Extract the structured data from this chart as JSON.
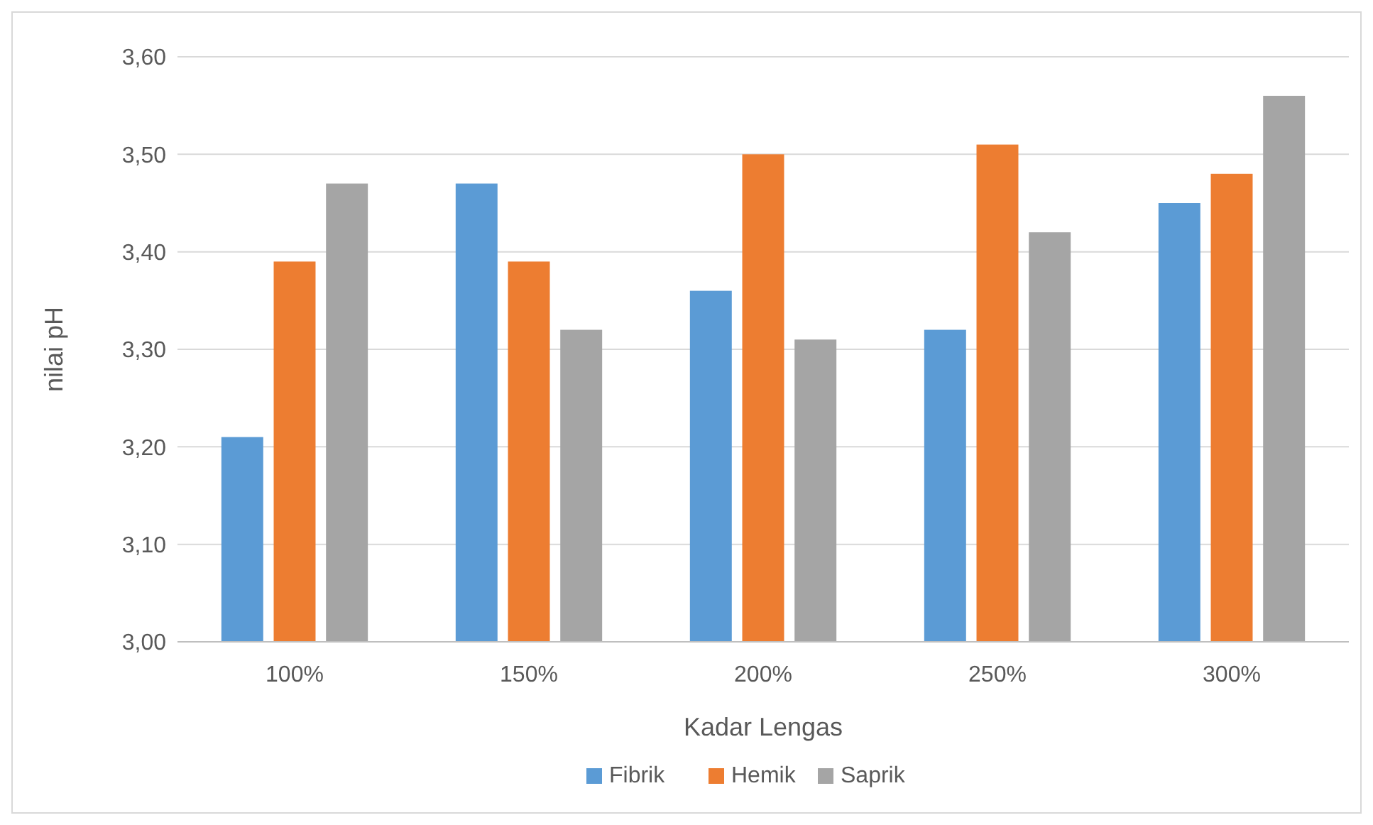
{
  "chart_data": {
    "type": "bar",
    "xlabel": "Kadar Lengas",
    "ylabel": "nilai pH",
    "categories": [
      "100%",
      "150%",
      "200%",
      "250%",
      "300%"
    ],
    "series": [
      {
        "name": "Fibrik",
        "color": "#5b9bd5",
        "values": [
          3.21,
          3.47,
          3.36,
          3.32,
          3.45
        ]
      },
      {
        "name": "Hemik",
        "color": "#ed7d31",
        "values": [
          3.39,
          3.39,
          3.5,
          3.51,
          3.48
        ]
      },
      {
        "name": "Saprik",
        "color": "#a5a5a5",
        "values": [
          3.47,
          3.32,
          3.31,
          3.42,
          3.56
        ]
      }
    ],
    "ylim": [
      3.0,
      3.6
    ],
    "yticks": [
      {
        "value": 3.0,
        "label": "3,00"
      },
      {
        "value": 3.1,
        "label": "3,10"
      },
      {
        "value": 3.2,
        "label": "3,20"
      },
      {
        "value": 3.3,
        "label": "3,30"
      },
      {
        "value": 3.4,
        "label": "3,40"
      },
      {
        "value": 3.5,
        "label": "3,50"
      },
      {
        "value": 3.6,
        "label": "3,60"
      }
    ],
    "grid": "y",
    "legend": "bottom"
  }
}
